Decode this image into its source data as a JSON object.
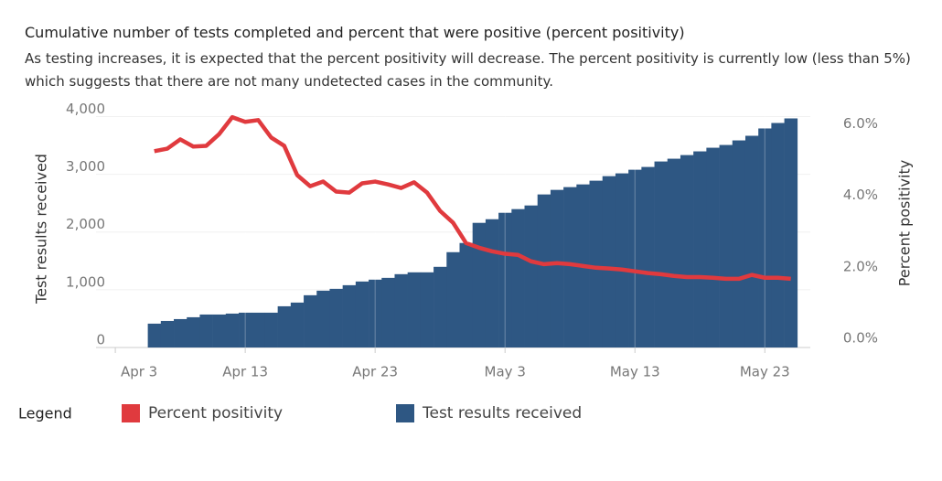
{
  "chart_data": {
    "type": "bar",
    "title": "Cumulative number of tests completed and percent that were positive (percent positivity)",
    "subtitle": "As testing increases, it is expected that the percent positivity will decrease. The percent positivity is currently low (less than 5%) which suggests that there are not many undetected cases in the community.",
    "y_label": "Test results received",
    "y2_label": "Percent positivity",
    "legend_title": "Legend",
    "categories": [
      "Apr 3",
      null,
      null,
      null,
      null,
      null,
      null,
      null,
      null,
      null,
      "Apr 13",
      null,
      null,
      null,
      null,
      null,
      null,
      null,
      null,
      null,
      "Apr 23",
      null,
      null,
      null,
      null,
      null,
      null,
      null,
      null,
      null,
      "May 3",
      null,
      null,
      null,
      null,
      null,
      null,
      null,
      null,
      null,
      "May 13",
      null,
      null,
      null,
      null,
      null,
      null,
      null,
      null,
      null,
      "May 23",
      null,
      null,
      null
    ],
    "series": [
      {
        "name": "Percent positivity",
        "type": "line",
        "axis": "y2",
        "color": "#e03a3e",
        "values": [
          null,
          null,
          null,
          5.49,
          5.56,
          5.82,
          5.62,
          5.64,
          5.97,
          6.44,
          6.31,
          6.36,
          5.87,
          5.64,
          4.82,
          4.51,
          4.64,
          4.36,
          4.33,
          4.59,
          4.64,
          4.56,
          4.46,
          4.62,
          4.33,
          3.82,
          3.49,
          2.92,
          2.79,
          2.69,
          2.62,
          2.59,
          2.41,
          2.33,
          2.36,
          2.33,
          2.28,
          2.23,
          2.21,
          2.18,
          2.13,
          2.08,
          2.05,
          2.0,
          1.97,
          1.97,
          1.95,
          1.92,
          1.92,
          2.03,
          1.95,
          1.95,
          1.92,
          null
        ]
      },
      {
        "name": "Test results received",
        "type": "bar",
        "color": "#2e5783",
        "values": [
          null,
          null,
          null,
          413,
          460,
          492,
          524,
          571,
          571,
          587,
          603,
          603,
          603,
          714,
          778,
          905,
          984,
          1016,
          1079,
          1143,
          1175,
          1206,
          1270,
          1302,
          1302,
          1397,
          1651,
          1810,
          2159,
          2222,
          2333,
          2397,
          2460,
          2651,
          2730,
          2778,
          2825,
          2889,
          2968,
          3016,
          3079,
          3127,
          3222,
          3270,
          3333,
          3397,
          3460,
          3508,
          3587,
          3667,
          3794,
          3889,
          3968,
          null
        ]
      }
    ],
    "ylim": [
      0,
      4150
    ],
    "yticks": [
      0,
      {
        "value": 1000,
        "label": "1,000"
      },
      {
        "value": 2000,
        "label": "2,000"
      },
      {
        "value": 3000,
        "label": "3,000"
      },
      {
        "value": 4000,
        "label": "4,000"
      }
    ],
    "y2lim": [
      0,
      6.7
    ],
    "y2ticks": [
      {
        "value": 0,
        "label": "0.0%"
      },
      {
        "value": 2,
        "label": "2.0%"
      },
      {
        "value": 4,
        "label": "4.0%"
      },
      {
        "value": 6,
        "label": "6.0%"
      }
    ],
    "grid": true
  }
}
